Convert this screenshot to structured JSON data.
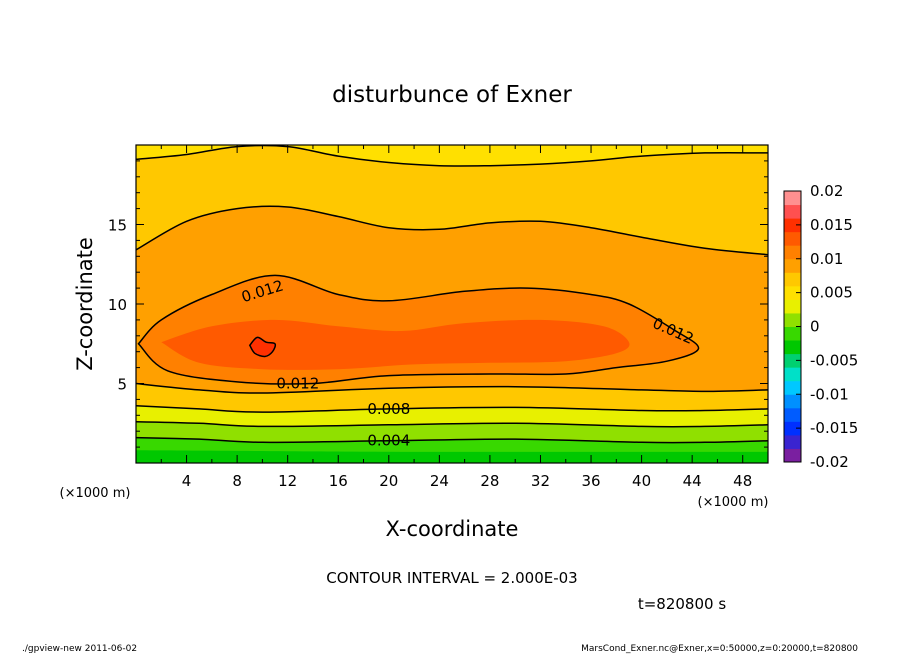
{
  "chart_data": {
    "type": "heatmap",
    "title": "disturbunce of Exner",
    "xlabel": "X-coordinate",
    "ylabel": "Z-coordinate",
    "x_unit": "(×1000 m)",
    "y_unit": "(×1000 m)",
    "xlim": [
      0,
      50
    ],
    "ylim": [
      0,
      20
    ],
    "x_ticks": [
      4,
      8,
      12,
      16,
      20,
      24,
      28,
      32,
      36,
      40,
      44,
      48
    ],
    "y_ticks": [
      5,
      10,
      15
    ],
    "colorbar": {
      "ticks": [
        "0.02",
        "0.015",
        "0.01",
        "0.005",
        "0",
        "-0.005",
        "-0.01",
        "-0.015",
        "-0.02"
      ],
      "range": [
        -0.02,
        0.02
      ],
      "colors": [
        "#7a1fa0",
        "#3a24d0",
        "#0030ff",
        "#005cff",
        "#0090ff",
        "#00c8ff",
        "#00e0c8",
        "#00d070",
        "#00c800",
        "#38d800",
        "#90e000",
        "#e8f000",
        "#ffe000",
        "#ffc800",
        "#ffa000",
        "#ff8000",
        "#ff5a00",
        "#ff3000",
        "#ff5050",
        "#ff9090"
      ]
    },
    "contour_interval_text": "CONTOUR INTERVAL = 2.000E-03",
    "contour_labels": [
      {
        "text": "0.012",
        "x": 10.0,
        "z": 10.8
      },
      {
        "text": "0.012",
        "x": 12.8,
        "z": 5.0
      },
      {
        "text": "0.012",
        "x": 42.5,
        "z": 8.3
      },
      {
        "text": "0.008",
        "x": 20.0,
        "z": 3.4
      },
      {
        "text": "0.004",
        "x": 20.0,
        "z": 1.4
      }
    ],
    "contours": [
      {
        "value": 0.004,
        "points": [
          [
            0,
            1.6
          ],
          [
            5,
            1.5
          ],
          [
            10,
            1.3
          ],
          [
            20,
            1.4
          ],
          [
            30,
            1.5
          ],
          [
            40,
            1.3
          ],
          [
            45,
            1.3
          ],
          [
            50,
            1.4
          ]
        ]
      },
      {
        "value": 0.006,
        "points": [
          [
            0,
            2.6
          ],
          [
            5,
            2.5
          ],
          [
            10,
            2.3
          ],
          [
            20,
            2.4
          ],
          [
            30,
            2.5
          ],
          [
            40,
            2.3
          ],
          [
            45,
            2.3
          ],
          [
            50,
            2.4
          ]
        ]
      },
      {
        "value": 0.008,
        "points": [
          [
            0,
            3.6
          ],
          [
            5,
            3.4
          ],
          [
            10,
            3.2
          ],
          [
            20,
            3.4
          ],
          [
            30,
            3.5
          ],
          [
            40,
            3.3
          ],
          [
            45,
            3.3
          ],
          [
            50,
            3.4
          ]
        ]
      },
      {
        "value": 0.01,
        "points": [
          [
            0,
            5.0
          ],
          [
            5,
            4.6
          ],
          [
            10,
            4.4
          ],
          [
            20,
            4.7
          ],
          [
            30,
            4.8
          ],
          [
            40,
            4.6
          ],
          [
            45,
            4.5
          ],
          [
            50,
            4.6
          ]
        ]
      },
      {
        "value": 0.012,
        "points": [
          [
            0.2,
            7.5
          ],
          [
            2.5,
            5.8
          ],
          [
            8,
            5.1
          ],
          [
            14,
            5.0
          ],
          [
            20,
            5.5
          ],
          [
            28,
            5.6
          ],
          [
            34,
            5.6
          ],
          [
            38,
            6.0
          ],
          [
            42,
            6.4
          ],
          [
            44.5,
            7.2
          ],
          [
            42.5,
            8.4
          ],
          [
            39,
            10.0
          ],
          [
            36,
            10.6
          ],
          [
            31,
            11.0
          ],
          [
            26,
            10.8
          ],
          [
            20,
            10.2
          ],
          [
            16,
            10.6
          ],
          [
            11,
            11.8
          ],
          [
            6,
            10.6
          ],
          [
            2,
            9.0
          ],
          [
            0.2,
            7.5
          ]
        ]
      },
      {
        "value": 0.01,
        "points": [
          [
            0,
            13.4
          ],
          [
            4,
            15.2
          ],
          [
            8,
            16.0
          ],
          [
            12,
            16.1
          ],
          [
            16,
            15.5
          ],
          [
            20,
            14.8
          ],
          [
            24,
            14.7
          ],
          [
            28,
            15.1
          ],
          [
            32,
            15.2
          ],
          [
            36,
            14.8
          ],
          [
            40,
            14.2
          ],
          [
            45,
            13.5
          ],
          [
            50,
            13.1
          ]
        ]
      },
      {
        "value": 0.008,
        "points": [
          [
            0,
            19.1
          ],
          [
            4,
            19.4
          ],
          [
            8,
            19.9
          ],
          [
            12,
            19.9
          ],
          [
            16,
            19.3
          ],
          [
            20,
            18.9
          ],
          [
            24,
            18.7
          ],
          [
            28,
            18.7
          ],
          [
            32,
            18.8
          ],
          [
            36,
            19.0
          ],
          [
            40,
            19.3
          ],
          [
            45,
            19.5
          ],
          [
            50,
            19.5
          ]
        ]
      },
      {
        "value": 0.014,
        "points": [
          [
            9,
            7.4
          ],
          [
            9.6,
            7.9
          ],
          [
            10.3,
            7.6
          ],
          [
            11,
            7.5
          ],
          [
            10.8,
            7.0
          ],
          [
            10.2,
            6.7
          ],
          [
            9.4,
            6.9
          ],
          [
            9,
            7.4
          ]
        ]
      }
    ],
    "field_bands": [
      {
        "value": 0.001,
        "color": "#00c800",
        "bottom": [
          [
            0,
            0
          ],
          [
            50,
            0
          ]
        ],
        "top": [
          [
            0,
            0.8
          ],
          [
            20,
            0.7
          ],
          [
            40,
            0.6
          ],
          [
            50,
            0.7
          ]
        ]
      },
      {
        "value": 0.003,
        "color": "#38d800",
        "bottom": [
          [
            0,
            0.8
          ],
          [
            20,
            0.7
          ],
          [
            40,
            0.6
          ],
          [
            50,
            0.7
          ]
        ],
        "top": [
          [
            0,
            1.6
          ],
          [
            5,
            1.5
          ],
          [
            10,
            1.3
          ],
          [
            20,
            1.4
          ],
          [
            30,
            1.5
          ],
          [
            40,
            1.3
          ],
          [
            45,
            1.3
          ],
          [
            50,
            1.4
          ]
        ]
      },
      {
        "value": 0.005,
        "color": "#90e000",
        "bottom": [
          [
            0,
            1.6
          ],
          [
            5,
            1.5
          ],
          [
            10,
            1.3
          ],
          [
            20,
            1.4
          ],
          [
            30,
            1.5
          ],
          [
            40,
            1.3
          ],
          [
            45,
            1.3
          ],
          [
            50,
            1.4
          ]
        ],
        "top": [
          [
            0,
            2.6
          ],
          [
            5,
            2.5
          ],
          [
            10,
            2.3
          ],
          [
            20,
            2.4
          ],
          [
            30,
            2.5
          ],
          [
            40,
            2.3
          ],
          [
            45,
            2.3
          ],
          [
            50,
            2.4
          ]
        ]
      },
      {
        "value": 0.007,
        "color": "#e8f000",
        "bottom": [
          [
            0,
            2.6
          ],
          [
            5,
            2.5
          ],
          [
            10,
            2.3
          ],
          [
            20,
            2.4
          ],
          [
            30,
            2.5
          ],
          [
            40,
            2.3
          ],
          [
            45,
            2.3
          ],
          [
            50,
            2.4
          ]
        ],
        "top": [
          [
            0,
            3.6
          ],
          [
            5,
            3.4
          ],
          [
            10,
            3.2
          ],
          [
            20,
            3.4
          ],
          [
            30,
            3.5
          ],
          [
            40,
            3.3
          ],
          [
            45,
            3.3
          ],
          [
            50,
            3.4
          ]
        ]
      },
      {
        "value": 0.009,
        "color": "#ffc800",
        "bottom": [
          [
            0,
            3.6
          ],
          [
            5,
            3.4
          ],
          [
            10,
            3.2
          ],
          [
            20,
            3.4
          ],
          [
            30,
            3.5
          ],
          [
            40,
            3.3
          ],
          [
            45,
            3.3
          ],
          [
            50,
            3.4
          ]
        ],
        "top": [
          [
            0,
            5.0
          ],
          [
            5,
            4.6
          ],
          [
            10,
            4.4
          ],
          [
            20,
            4.7
          ],
          [
            30,
            4.8
          ],
          [
            40,
            4.6
          ],
          [
            45,
            4.5
          ],
          [
            50,
            4.6
          ]
        ]
      }
    ],
    "background_levels": [
      {
        "value": 0.009,
        "color": "#ffe000"
      },
      {
        "value": 0.0095,
        "color": "#ffc800"
      },
      {
        "value": 0.0105,
        "color": "#ffa000"
      },
      {
        "value": 0.0115,
        "color": "#ff8000"
      },
      {
        "value": 0.0125,
        "color": "#ff5a00"
      },
      {
        "value": 0.0135,
        "color": "#ff3000"
      }
    ]
  },
  "info": {
    "time": "t=820800 s",
    "footer_left": "./gpview-new   2011-06-02",
    "footer_right": "MarsCond_Exner.nc@Exner,x=0:50000,z=0:20000,t=820800"
  }
}
